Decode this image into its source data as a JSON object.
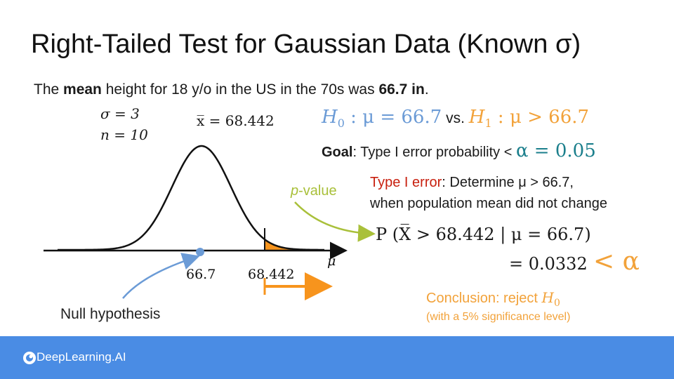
{
  "title": "Right-Tailed Test for Gaussian Data (Known σ)",
  "intro": {
    "part1": "The ",
    "bold1": "mean",
    "part2": "  height for 18 y/o in the US in the 70s was ",
    "bold2": "66.7 in",
    "part3": "."
  },
  "params": {
    "sigma": "σ = 3",
    "n": "n = 10",
    "xbar": "x̅ = 68.442"
  },
  "hypotheses": {
    "h0_sym": "H",
    "h0_sub": "0",
    "h0_rest": " : μ = 66.7",
    "vs": " vs. ",
    "h1_sym": "H",
    "h1_sub": "1",
    "h1_rest": " : μ > 66.7"
  },
  "goal": {
    "label": "Goal",
    "text": ": Type I error probability < ",
    "alpha": "α = 0.05"
  },
  "type1": {
    "label": "Type I error",
    "text1": ": Determine μ > 66.7,",
    "text2": "when population mean did not change"
  },
  "probability": {
    "expr": "P (X̅ > 68.442 | μ = 66.7)",
    "result": "= 0.0332",
    "compare": "< α"
  },
  "conclusion": {
    "line1": "Conclusion: reject ",
    "h0": "H",
    "h0_sub": "0",
    "line2": "(with a 5% significance level)"
  },
  "plot_labels": {
    "pvalue_p": "p",
    "pvalue_rest": "-value",
    "mu_tick": "66.7",
    "xbar_tick": "68.442",
    "axis": "μ",
    "null": "Null hypothesis"
  },
  "colors": {
    "blue": "#6b9bd6",
    "orange": "#f2a23a",
    "fill": "#f7941d",
    "green": "#a9c03a",
    "footer": "#4a8ce4"
  },
  "footer": {
    "brand": "DeepLearning.AI"
  }
}
